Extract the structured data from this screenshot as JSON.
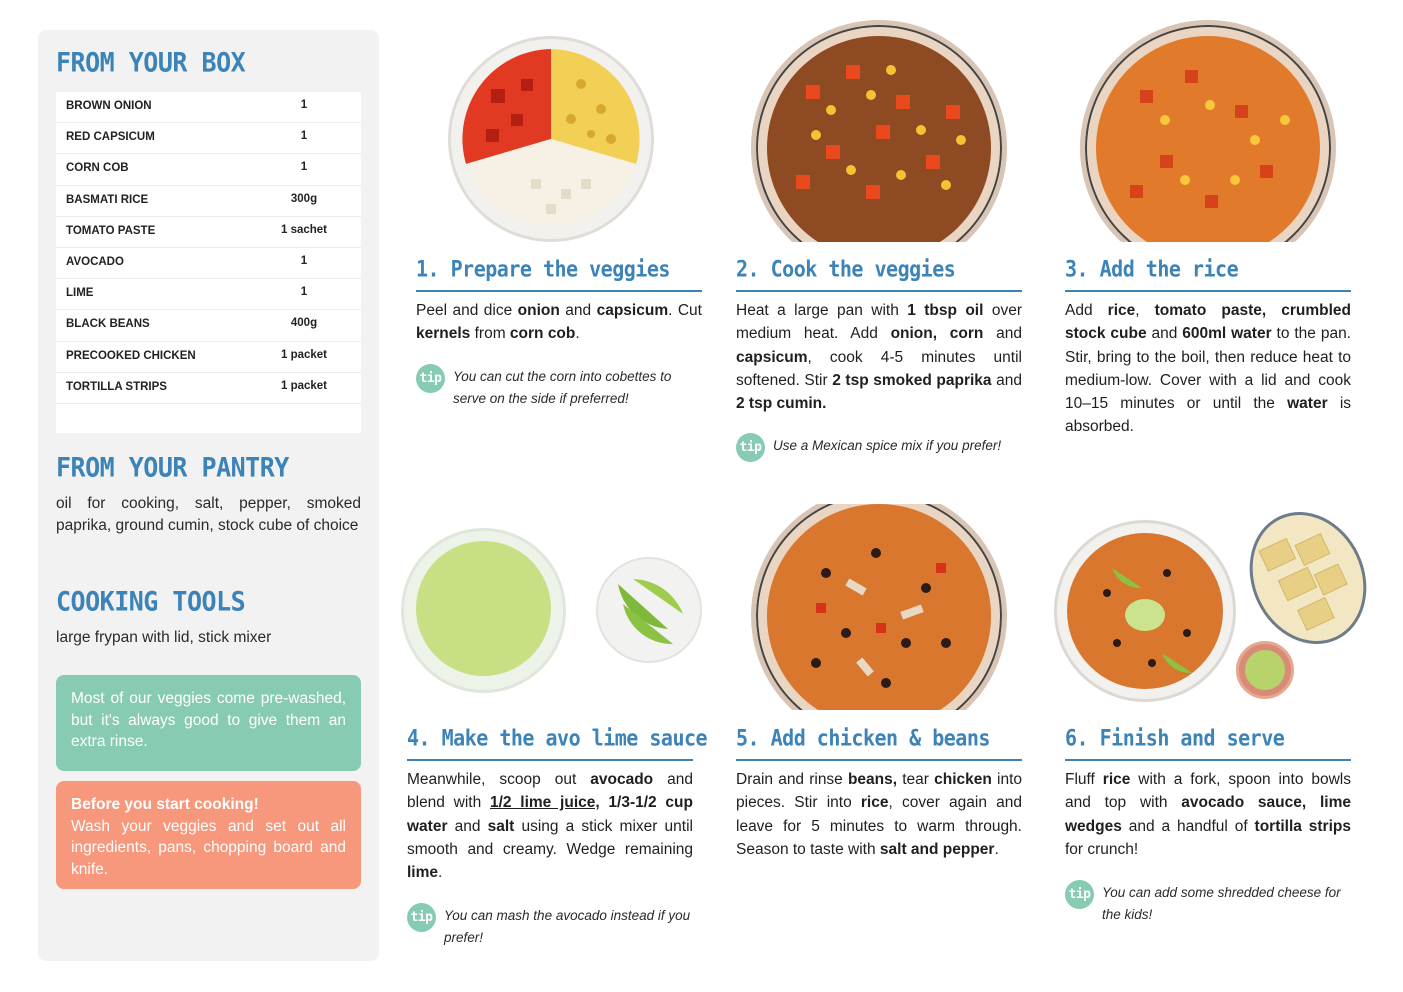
{
  "sidebar": {
    "box_title": "FROM YOUR BOX",
    "ingredients": [
      {
        "name": "BROWN ONION",
        "qty": "1"
      },
      {
        "name": "RED CAPSICUM",
        "qty": "1"
      },
      {
        "name": "CORN COB",
        "qty": "1"
      },
      {
        "name": "BASMATI RICE",
        "qty": "300g"
      },
      {
        "name": "TOMATO PASTE",
        "qty": "1 sachet"
      },
      {
        "name": "AVOCADO",
        "qty": "1"
      },
      {
        "name": "LIME",
        "qty": "1"
      },
      {
        "name": "BLACK BEANS",
        "qty": "400g"
      },
      {
        "name": "PRECOOKED CHICKEN",
        "qty": "1 packet"
      },
      {
        "name": "TORTILLA STRIPS",
        "qty": "1 packet"
      }
    ],
    "pantry_title": "FROM YOUR PANTRY",
    "pantry_text": "oil for cooking, salt, pepper, smoked paprika, ground cumin, stock cube of choice",
    "tools_title": "COOKING TOOLS",
    "tools_text": "large frypan with lid, stick mixer",
    "rinse_note": "Most of our veggies come pre-washed, but it's always good to give them an extra rinse.",
    "start_title": "Before you start cooking!",
    "start_text": "Wash your veggies and set out all ingredients, pans, chopping board and knife."
  },
  "steps": [
    {
      "title": "1. Prepare the veggies",
      "tip": "You can cut the corn into cobettes to serve on the side if preferred!"
    },
    {
      "title": "2. Cook the veggies",
      "tip": "Use a Mexican spice mix if you prefer!"
    },
    {
      "title": "3. Add the rice",
      "tip": ""
    },
    {
      "title": "4. Make the avo lime sauce",
      "tip": "You can mash the avocado instead if you prefer!"
    },
    {
      "title": "5. Add chicken & beans",
      "tip": ""
    },
    {
      "title": "6. Finish and serve",
      "tip": "You can add some shredded cheese for the kids!"
    }
  ],
  "step_body": {
    "s1": [
      "Peel and dice ",
      "onion",
      " and ",
      "capsicum",
      ". Cut ",
      "kernels",
      " from ",
      "corn cob",
      "."
    ],
    "s2": [
      "Heat a large pan with ",
      "1 tbsp oil",
      " over medium heat. Add ",
      "onion, corn",
      " and ",
      "capsicum",
      ", cook 4-5 minutes until softened. Stir ",
      "2 tsp smoked paprika",
      " and ",
      "2 tsp cumin."
    ],
    "s3": [
      "Add ",
      "rice",
      ", ",
      "tomato paste, crumbled stock cube",
      " and ",
      "600ml water",
      " to the pan. Stir, bring to the boil, then reduce heat to medium-low. Cover with a lid and cook 10–15 minutes or until the ",
      "water",
      " is absorbed."
    ],
    "s4": [
      "Meanwhile, scoop out ",
      "avocado",
      " and blend with ",
      "1/2 lime juice,",
      " ",
      "1/3-1/2 cup water",
      " and ",
      "salt",
      " using a stick mixer until smooth and creamy. Wedge remaining ",
      "lime",
      "."
    ],
    "s5": [
      "Drain and rinse ",
      "beans,",
      " tear ",
      "chicken",
      " into pieces. Stir into ",
      "rice",
      ", cover again and leave for 5 minutes to warm through. Season to taste with ",
      "salt and pepper",
      "."
    ],
    "s6": [
      "Fluff ",
      "rice",
      " with a fork, spoon into bowls and top with ",
      "avocado sauce, lime wedges",
      " and a handful of ",
      "tortilla strips",
      " for crunch!"
    ]
  },
  "tip_label": "tip",
  "colors": {
    "heading": "#3c83b8",
    "tip_badge": "#86cbb2",
    "note_green": "#86cbb2",
    "note_orange": "#f7977b",
    "sidebar_bg": "#f2f2f2"
  }
}
